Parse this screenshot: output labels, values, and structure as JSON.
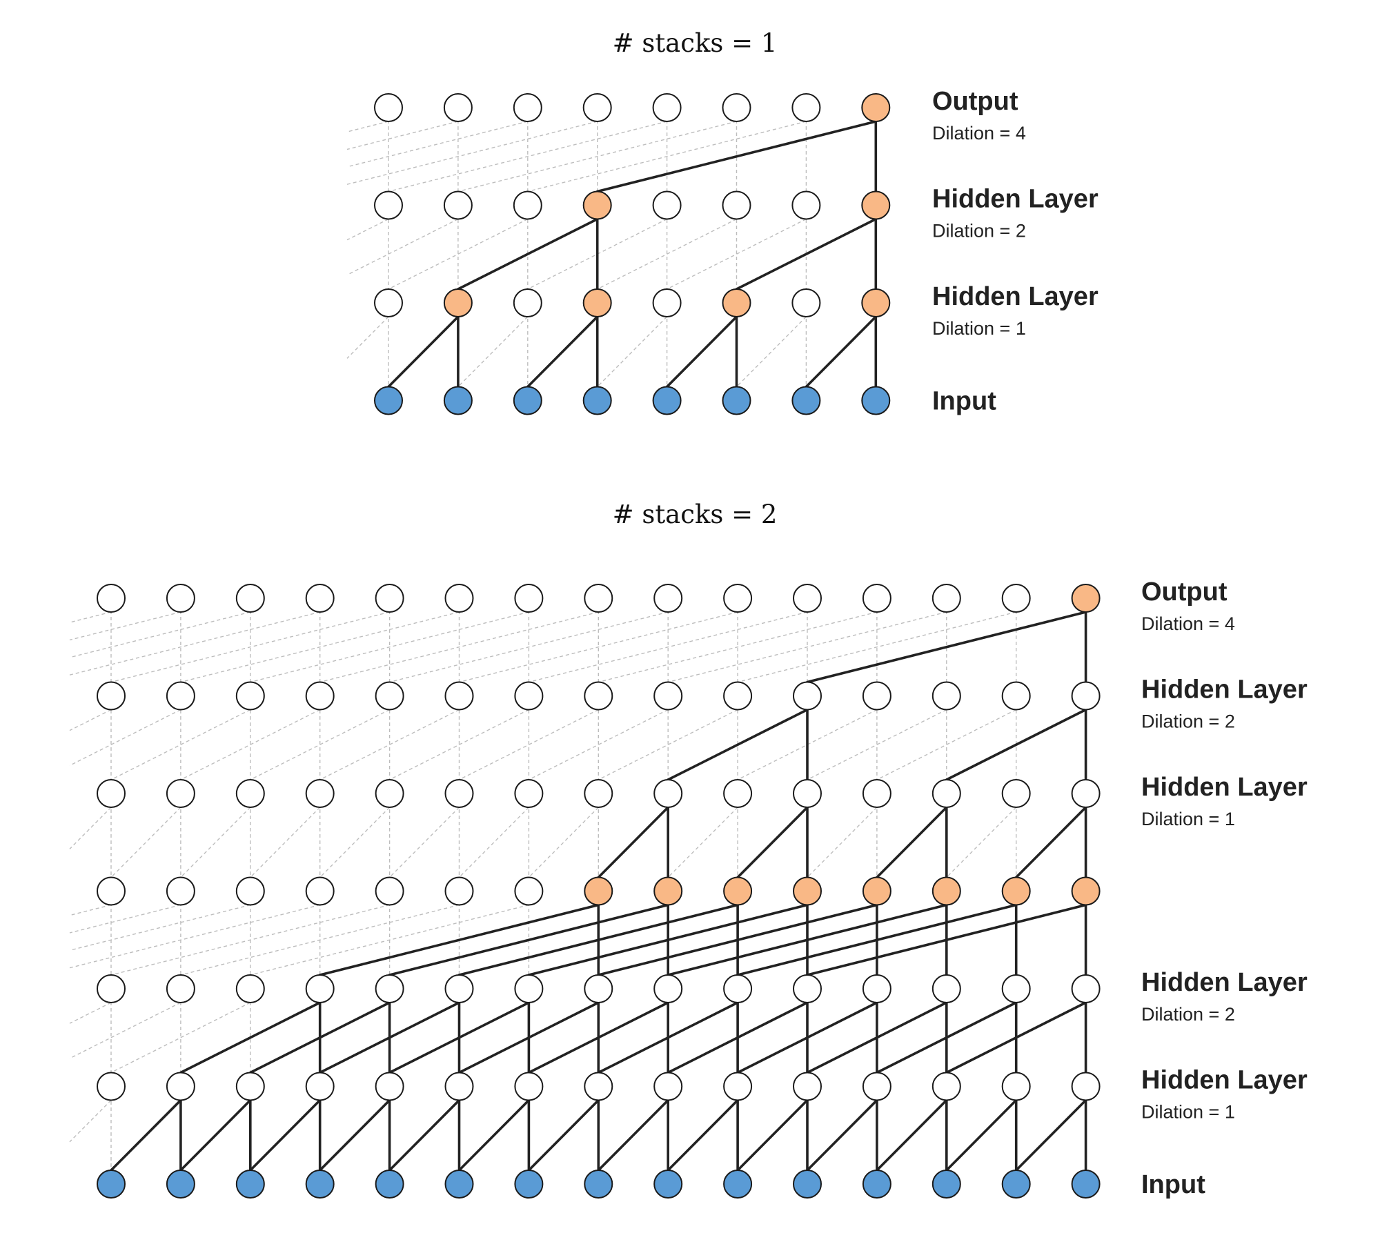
{
  "colors": {
    "input": "#5a9bd5",
    "highlight": "#f9b886",
    "plain": "#ffffff",
    "edge": "#222222",
    "grid": "#bdbdbd"
  },
  "panels": [
    {
      "title": "# stacks = 1",
      "columns": 8,
      "rows": [
        {
          "name": "Output",
          "sub": "Dilation = 4",
          "dilation": 4,
          "highlight": [
            7
          ],
          "edges_from": [
            7
          ]
        },
        {
          "name": "Hidden Layer",
          "sub": "Dilation = 2",
          "dilation": 2,
          "highlight": [
            3,
            7
          ],
          "edges_from": [
            3,
            7
          ]
        },
        {
          "name": "Hidden Layer",
          "sub": "Dilation = 1",
          "dilation": 1,
          "highlight": [
            1,
            3,
            5,
            7
          ],
          "edges_from": [
            1,
            3,
            5,
            7
          ]
        },
        {
          "name": "Input",
          "sub": "",
          "dilation": 0,
          "highlight": [],
          "edges_from": [],
          "input": true
        }
      ]
    },
    {
      "title": "# stacks = 2",
      "columns": 15,
      "rows": [
        {
          "name": "Output",
          "sub": "Dilation = 4",
          "dilation": 4,
          "highlight": [
            14
          ],
          "edges_from": [
            14
          ]
        },
        {
          "name": "Hidden Layer",
          "sub": "Dilation = 2",
          "dilation": 2,
          "highlight": [],
          "edges_from": [
            10,
            14
          ]
        },
        {
          "name": "Hidden Layer",
          "sub": "Dilation = 1",
          "dilation": 1,
          "highlight": [],
          "edges_from": [
            8,
            10,
            12,
            14
          ]
        },
        {
          "name": "",
          "sub": "",
          "dilation": 4,
          "highlight": [
            7,
            8,
            9,
            10,
            11,
            12,
            13,
            14
          ],
          "edges_from": [
            7,
            8,
            9,
            10,
            11,
            12,
            13,
            14
          ]
        },
        {
          "name": "Hidden Layer",
          "sub": "Dilation = 2",
          "dilation": 2,
          "highlight": [],
          "edges_from": [
            3,
            4,
            5,
            6,
            7,
            8,
            9,
            10,
            11,
            12,
            13,
            14
          ]
        },
        {
          "name": "Hidden Layer",
          "sub": "Dilation = 1",
          "dilation": 1,
          "highlight": [],
          "edges_from": [
            1,
            2,
            3,
            4,
            5,
            6,
            7,
            8,
            9,
            10,
            11,
            12,
            13,
            14
          ]
        },
        {
          "name": "Input",
          "sub": "",
          "dilation": 0,
          "highlight": [],
          "edges_from": [],
          "input": true
        }
      ]
    }
  ]
}
